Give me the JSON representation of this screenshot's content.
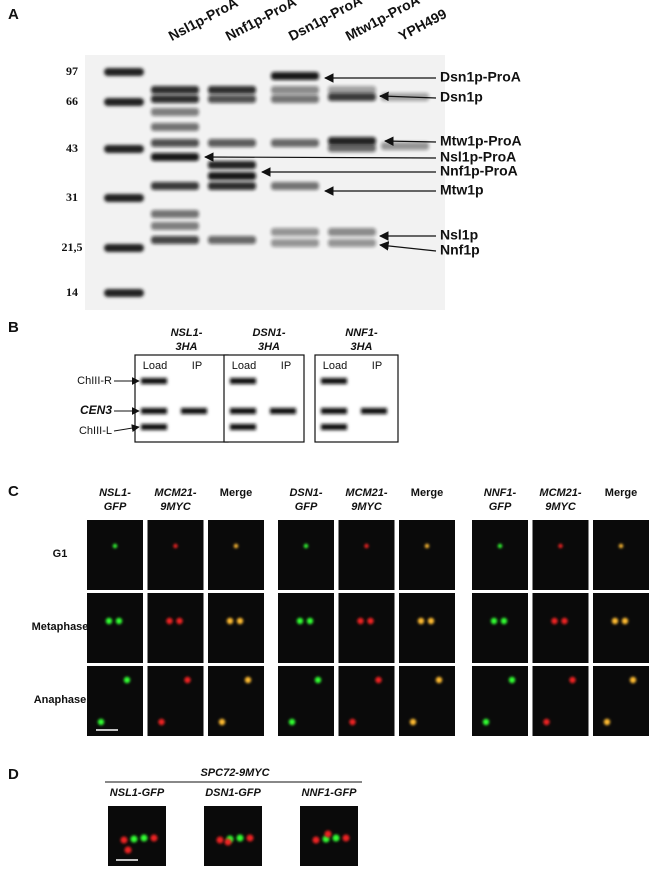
{
  "panels": {
    "A": {
      "label": "A",
      "lanes": [
        "Nsl1p-ProA",
        "Nnf1p-ProA",
        "Dsn1p-ProA",
        "Mtw1p-ProA",
        "YPH499"
      ],
      "markers": [
        "97",
        "66",
        "43",
        "31",
        "21,5",
        "14"
      ],
      "bands": [
        "Dsn1p-ProA",
        "Dsn1p",
        "Mtw1p-ProA",
        "Nsl1p-ProA",
        "Nnf1p-ProA",
        "Mtw1p",
        "Nsl1p",
        "Nnf1p"
      ]
    },
    "B": {
      "label": "B",
      "strains": [
        [
          "NSL1-",
          "3HA"
        ],
        [
          "DSN1-",
          "3HA"
        ],
        [
          "NNF1-",
          "3HA"
        ]
      ],
      "columns": [
        "Load",
        "IP"
      ],
      "rows": [
        "ChIII-R",
        "CEN3",
        "ChIII-L"
      ]
    },
    "C": {
      "label": "C",
      "columns": [
        [
          [
            "NSL1-",
            "GFP"
          ],
          [
            "MCM21-",
            "9MYC"
          ],
          [
            "Merge"
          ]
        ],
        [
          [
            "DSN1-",
            "GFP"
          ],
          [
            "MCM21-",
            "9MYC"
          ],
          [
            "Merge"
          ]
        ],
        [
          [
            "NNF1-",
            "GFP"
          ],
          [
            "MCM21-",
            "9MYC"
          ],
          [
            "Merge"
          ]
        ]
      ],
      "rows": [
        "G1",
        "Metaphase",
        "Anaphase"
      ]
    },
    "D": {
      "label": "D",
      "header": "SPC72-9MYC",
      "columns": [
        "NSL1-GFP",
        "DSN1-GFP",
        "NNF1-GFP"
      ]
    }
  }
}
